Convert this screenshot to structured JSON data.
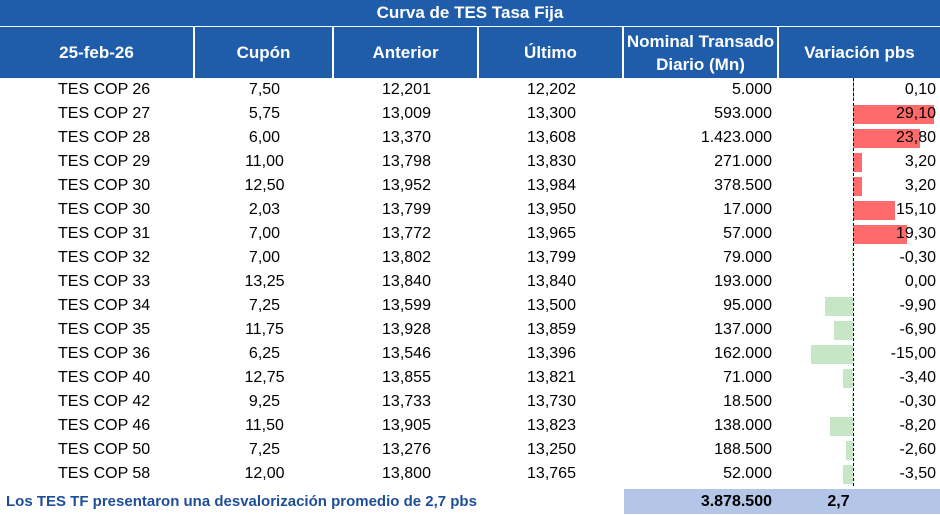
{
  "title": "Curva de TES Tasa Fija",
  "headers": {
    "date": "25-feb-26",
    "coupon": "Cupón",
    "previous": "Anterior",
    "last": "Último",
    "nominal_line1": "Nominal Transado",
    "nominal_line2": "Diario (Mn)",
    "variation": "Variación pbs"
  },
  "rows": [
    {
      "name": "TES COP 26",
      "coupon": "7,50",
      "previous": "12,201",
      "last": "12,202",
      "nominal": "5.000",
      "variation": "0,10",
      "variation_value": 0.1
    },
    {
      "name": "TES COP 27",
      "coupon": "5,75",
      "previous": "13,009",
      "last": "13,300",
      "nominal": "593.000",
      "variation": "29,10",
      "variation_value": 29.1
    },
    {
      "name": "TES COP 28",
      "coupon": "6,00",
      "previous": "13,370",
      "last": "13,608",
      "nominal": "1.423.000",
      "variation": "23,80",
      "variation_value": 23.8
    },
    {
      "name": "TES COP 29",
      "coupon": "11,00",
      "previous": "13,798",
      "last": "13,830",
      "nominal": "271.000",
      "variation": "3,20",
      "variation_value": 3.2
    },
    {
      "name": "TES COP 30",
      "coupon": "12,50",
      "previous": "13,952",
      "last": "13,984",
      "nominal": "378.500",
      "variation": "3,20",
      "variation_value": 3.2
    },
    {
      "name": "TES COP 30",
      "coupon": "2,03",
      "previous": "13,799",
      "last": "13,950",
      "nominal": "17.000",
      "variation": "15,10",
      "variation_value": 15.1
    },
    {
      "name": "TES COP 31",
      "coupon": "7,00",
      "previous": "13,772",
      "last": "13,965",
      "nominal": "57.000",
      "variation": "19,30",
      "variation_value": 19.3
    },
    {
      "name": "TES COP 32",
      "coupon": "7,00",
      "previous": "13,802",
      "last": "13,799",
      "nominal": "79.000",
      "variation": "-0,30",
      "variation_value": -0.3
    },
    {
      "name": "TES COP 33",
      "coupon": "13,25",
      "previous": "13,840",
      "last": "13,840",
      "nominal": "193.000",
      "variation": "0,00",
      "variation_value": 0.0
    },
    {
      "name": "TES COP 34",
      "coupon": "7,25",
      "previous": "13,599",
      "last": "13,500",
      "nominal": "95.000",
      "variation": "-9,90",
      "variation_value": -9.9
    },
    {
      "name": "TES COP 35",
      "coupon": "11,75",
      "previous": "13,928",
      "last": "13,859",
      "nominal": "137.000",
      "variation": "-6,90",
      "variation_value": -6.9
    },
    {
      "name": "TES COP 36",
      "coupon": "6,25",
      "previous": "13,546",
      "last": "13,396",
      "nominal": "162.000",
      "variation": "-15,00",
      "variation_value": -15.0
    },
    {
      "name": "TES COP 40",
      "coupon": "12,75",
      "previous": "13,855",
      "last": "13,821",
      "nominal": "71.000",
      "variation": "-3,40",
      "variation_value": -3.4
    },
    {
      "name": "TES COP 42",
      "coupon": "9,25",
      "previous": "13,733",
      "last": "13,730",
      "nominal": "18.500",
      "variation": "-0,30",
      "variation_value": -0.3
    },
    {
      "name": "TES COP 46",
      "coupon": "11,50",
      "previous": "13,905",
      "last": "13,823",
      "nominal": "138.000",
      "variation": "-8,20",
      "variation_value": -8.2
    },
    {
      "name": "TES COP 50",
      "coupon": "7,25",
      "previous": "13,276",
      "last": "13,250",
      "nominal": "188.500",
      "variation": "-2,60",
      "variation_value": -2.6
    },
    {
      "name": "TES COP 58",
      "coupon": "12,00",
      "previous": "13,800",
      "last": "13,765",
      "nominal": "52.000",
      "variation": "-3,50",
      "variation_value": -3.5
    }
  ],
  "footer": {
    "note": "Los TES TF presentaron una desvalorización promedio de 2,7 pbs",
    "total_nominal": "3.878.500",
    "avg_variation": "2,7"
  },
  "colors": {
    "header_bg": "#1f5dab",
    "positive_bar": "#ff6b6b",
    "negative_bar": "#c6e6c6",
    "footer_bg": "#b4c6e7",
    "footer_text": "#1f4e99"
  }
}
